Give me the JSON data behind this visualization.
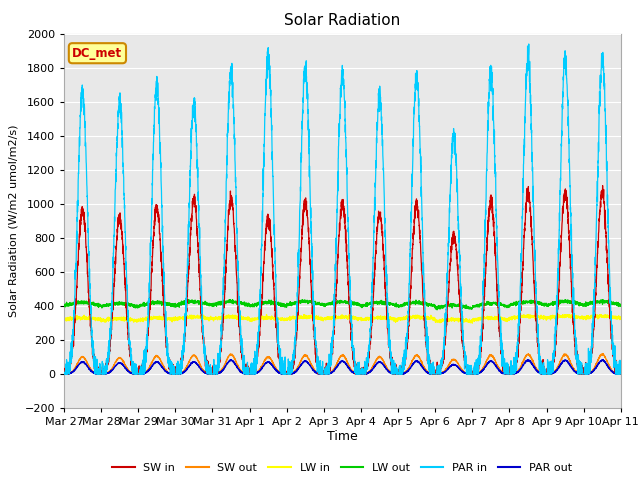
{
  "title": "Solar Radiation",
  "ylabel": "Solar Radiation (W/m2 umol/m2/s)",
  "xlabel": "Time",
  "ylim": [
    -200,
    2000
  ],
  "yticks": [
    -200,
    0,
    200,
    400,
    600,
    800,
    1000,
    1200,
    1400,
    1600,
    1800,
    2000
  ],
  "n_days": 15,
  "x_tick_labels": [
    "Mar 27",
    "Mar 28",
    "Mar 29",
    "Mar 30",
    "Mar 31",
    "Apr 1",
    "Apr 2",
    "Apr 3",
    "Apr 4",
    "Apr 5",
    "Apr 6",
    "Apr 7",
    "Apr 8",
    "Apr 9",
    "Apr 10",
    "Apr 11"
  ],
  "colors": {
    "SW_in": "#cc0000",
    "SW_out": "#ff8800",
    "LW_in": "#ffff00",
    "LW_out": "#00cc00",
    "PAR_in": "#00ccff",
    "PAR_out": "#0000cc"
  },
  "legend_label": "DC_met",
  "bg_color": "#e8e8e8",
  "grid_color": "#ffffff",
  "annotation_box_color": "#ffff99",
  "annotation_box_edge": "#cc8800",
  "day_peaks_SW_in": [
    960,
    920,
    980,
    1020,
    1030,
    920,
    1010,
    1000,
    940,
    990,
    820,
    1010,
    1060,
    1070,
    1070
  ],
  "day_peaks_SW_out": [
    100,
    95,
    105,
    110,
    115,
    100,
    110,
    110,
    100,
    110,
    85,
    110,
    115,
    115,
    115
  ],
  "lw_in_base": [
    310,
    305,
    310,
    315,
    315,
    310,
    315,
    315,
    310,
    315,
    300,
    310,
    320,
    320,
    320
  ],
  "lw_out_base": [
    385,
    380,
    385,
    390,
    390,
    385,
    390,
    390,
    385,
    385,
    370,
    380,
    390,
    390,
    390
  ],
  "day_peaks_PAR_in": [
    1660,
    1590,
    1700,
    1590,
    1780,
    1870,
    1800,
    1770,
    1640,
    1750,
    1400,
    1770,
    1850,
    1850,
    1850
  ],
  "day_peaks_PAR_out": [
    70,
    65,
    70,
    70,
    80,
    70,
    75,
    75,
    70,
    75,
    55,
    75,
    80,
    80,
    80
  ]
}
